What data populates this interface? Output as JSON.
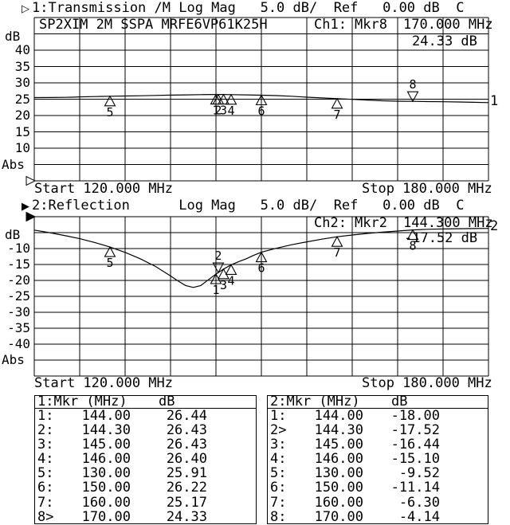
{
  "chart_data": [
    {
      "type": "line",
      "channel": "1",
      "measurement": "Transmission",
      "pointer_glyph": "▷",
      "header_text": "1:Transmission /M Log Mag   5.0 dB/  Ref   0.00 dB  C",
      "device_title": "SP2XIM 2M SSPA MRFE6VP61K25H",
      "readout": {
        "ch_label": "Ch1:",
        "mkr_label": "Mkr8",
        "freq": "170.000 MHz",
        "value": "24.33 dB"
      },
      "ylabel": "dB",
      "y_ticks": [
        "40",
        "35",
        "30",
        "25",
        "20",
        "15",
        "10"
      ],
      "y_bottom_label": "Abs",
      "ylim_top_db": 50,
      "ylim_bottom_db": 0,
      "xlim": [
        120,
        180
      ],
      "x_start_label": "Start 120.000 MHz",
      "x_stop_label": "Stop 180.000 MHz",
      "trace_number": "1",
      "active_marker": 8,
      "ref_pointer": "hollow",
      "markers": [
        {
          "n": 1,
          "f": 144.0,
          "db": 26.44
        },
        {
          "n": 2,
          "f": 144.3,
          "db": 26.43
        },
        {
          "n": 3,
          "f": 145.0,
          "db": 26.43
        },
        {
          "n": 4,
          "f": 146.0,
          "db": 26.4
        },
        {
          "n": 5,
          "f": 130.0,
          "db": 25.91
        },
        {
          "n": 6,
          "f": 150.0,
          "db": 26.22
        },
        {
          "n": 7,
          "f": 160.0,
          "db": 25.17
        },
        {
          "n": 8,
          "f": 170.0,
          "db": 24.33
        }
      ],
      "curve_points": [
        [
          120,
          25.5
        ],
        [
          122,
          25.52
        ],
        [
          124,
          25.55
        ],
        [
          125,
          25.62
        ],
        [
          126,
          25.7
        ],
        [
          128,
          25.8
        ],
        [
          130,
          25.91
        ],
        [
          132,
          25.97
        ],
        [
          134,
          26.05
        ],
        [
          136,
          26.15
        ],
        [
          138,
          26.25
        ],
        [
          140,
          26.32
        ],
        [
          142,
          26.4
        ],
        [
          144,
          26.44
        ],
        [
          145,
          26.43
        ],
        [
          146,
          26.4
        ],
        [
          148,
          26.32
        ],
        [
          150,
          26.22
        ],
        [
          152,
          26.1
        ],
        [
          154,
          25.9
        ],
        [
          156,
          25.62
        ],
        [
          158,
          25.4
        ],
        [
          160,
          25.17
        ],
        [
          162,
          24.95
        ],
        [
          164,
          24.72
        ],
        [
          166,
          24.52
        ],
        [
          168,
          24.4
        ],
        [
          170,
          24.33
        ],
        [
          172,
          24.28
        ],
        [
          174,
          24.22
        ],
        [
          176,
          24.15
        ],
        [
          178,
          24.05
        ],
        [
          180,
          23.95
        ]
      ]
    },
    {
      "type": "line",
      "channel": "2",
      "measurement": "Reflection",
      "pointer_glyph": "▶",
      "header_text": "2:Reflection      Log Mag   5.0 dB/  Ref   0.00 dB  C",
      "device_title": "",
      "readout": {
        "ch_label": "Ch2:",
        "mkr_label": "Mkr2",
        "freq": "144.300 MHz",
        "value": "-17.52 dB"
      },
      "ylabel": "dB",
      "y_ticks": [
        "-10",
        "-15",
        "-20",
        "-25",
        "-30",
        "-35",
        "-40"
      ],
      "y_bottom_label": "Abs",
      "ylim_top_db": 0,
      "ylim_bottom_db": -50,
      "xlim": [
        120,
        180
      ],
      "x_start_label": "Start 120.000 MHz",
      "x_stop_label": "Stop 180.000 MHz",
      "trace_number": "2",
      "active_marker": 2,
      "ref_pointer": "filled",
      "markers": [
        {
          "n": 1,
          "f": 144.0,
          "db": -18.0
        },
        {
          "n": 2,
          "f": 144.3,
          "db": -17.52
        },
        {
          "n": 3,
          "f": 145.0,
          "db": -16.44
        },
        {
          "n": 4,
          "f": 146.0,
          "db": -15.1
        },
        {
          "n": 5,
          "f": 130.0,
          "db": -9.52
        },
        {
          "n": 6,
          "f": 150.0,
          "db": -11.14
        },
        {
          "n": 7,
          "f": 160.0,
          "db": -6.3
        },
        {
          "n": 8,
          "f": 170.0,
          "db": -4.14
        }
      ],
      "curve_points": [
        [
          120,
          -4.2
        ],
        [
          122,
          -5.0
        ],
        [
          124,
          -5.9
        ],
        [
          126,
          -6.9
        ],
        [
          128,
          -8.1
        ],
        [
          130,
          -9.52
        ],
        [
          132,
          -11.2
        ],
        [
          134,
          -13.2
        ],
        [
          136,
          -15.6
        ],
        [
          138,
          -18.6
        ],
        [
          139,
          -20.2
        ],
        [
          140,
          -21.6
        ],
        [
          141,
          -22.2
        ],
        [
          142,
          -21.6
        ],
        [
          143,
          -19.8
        ],
        [
          144,
          -18.0
        ],
        [
          144.3,
          -17.52
        ],
        [
          145,
          -16.44
        ],
        [
          146,
          -15.1
        ],
        [
          147,
          -14.1
        ],
        [
          148,
          -13.2
        ],
        [
          149,
          -12.1
        ],
        [
          150,
          -11.14
        ],
        [
          152,
          -9.9
        ],
        [
          154,
          -8.8
        ],
        [
          156,
          -7.9
        ],
        [
          158,
          -7.05
        ],
        [
          160,
          -6.3
        ],
        [
          162,
          -5.75
        ],
        [
          164,
          -5.25
        ],
        [
          166,
          -4.85
        ],
        [
          168,
          -4.5
        ],
        [
          170,
          -4.14
        ],
        [
          172,
          -3.95
        ],
        [
          174,
          -3.85
        ],
        [
          176,
          -3.78
        ],
        [
          178,
          -3.72
        ],
        [
          180,
          -3.68
        ]
      ]
    }
  ],
  "marker_tables": [
    {
      "title": "1:Mkr (MHz)",
      "unit": "dB",
      "chart_index": 0
    },
    {
      "title": "2:Mkr (MHz)",
      "unit": "dB",
      "chart_index": 1
    }
  ]
}
